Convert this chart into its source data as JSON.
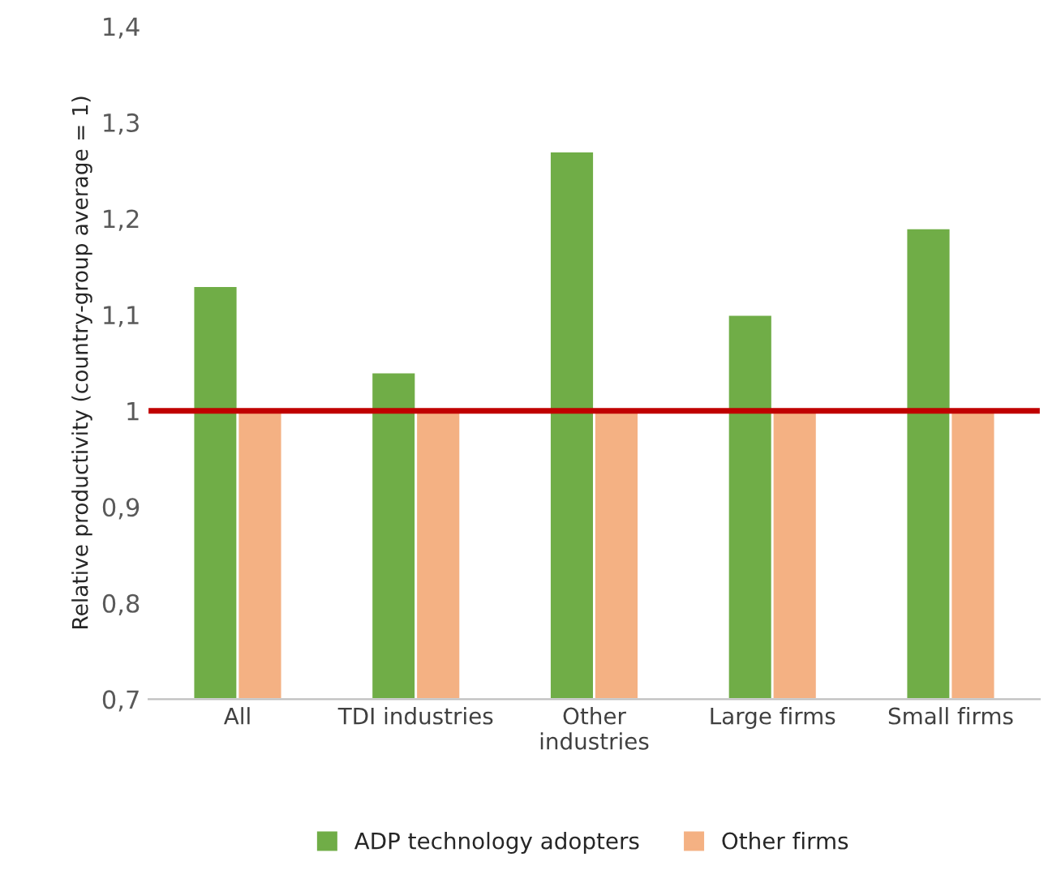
{
  "chart_data": {
    "type": "bar",
    "ylabel": "Relative productivity (country-group average = 1)",
    "categories": [
      "All",
      "TDI industries",
      "Other\nindustries",
      "Large firms",
      "Small firms"
    ],
    "series": [
      {
        "name": "ADP technology adopters",
        "color": "#70ad47",
        "values": [
          1.13,
          1.04,
          1.27,
          1.1,
          1.19
        ]
      },
      {
        "name": "Other firms",
        "color": "#f4b183",
        "values": [
          1.0,
          1.0,
          1.0,
          1.0,
          1.0
        ]
      }
    ],
    "ylim": [
      0.7,
      1.4
    ],
    "yticks": [
      {
        "value": 0.7,
        "label": "0,7"
      },
      {
        "value": 0.8,
        "label": "0,8"
      },
      {
        "value": 0.9,
        "label": "0,9"
      },
      1,
      {
        "value": 1.1,
        "label": "1,1"
      },
      {
        "value": 1.2,
        "label": "1,2"
      },
      {
        "value": 1.3,
        "label": "1,3"
      },
      {
        "value": 1.4,
        "label": "1,4"
      }
    ],
    "ref_lines": [
      {
        "axis": "y",
        "value": 1,
        "label": null,
        "color": "#c00000"
      }
    ],
    "legend": "bottom",
    "grid": false
  }
}
